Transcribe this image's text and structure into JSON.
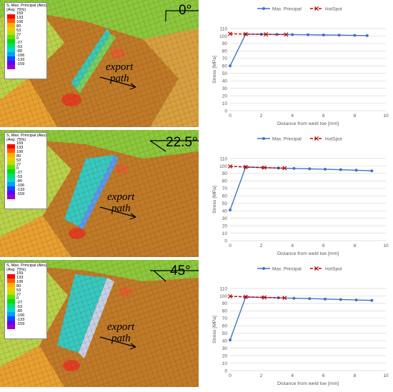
{
  "fea_legend": {
    "title_line1": "S, Max. Principal (Abs)",
    "title_line2": "(Avg: 75%)",
    "levels": [
      "159",
      "133",
      "106",
      "80",
      "53",
      "27",
      "0",
      "-27",
      "-53",
      "-80",
      "-106",
      "-133",
      "-159"
    ],
    "colors": [
      "#ff0000",
      "#ff5a00",
      "#ffae00",
      "#e8d000",
      "#b8e000",
      "#60e000",
      "#00e000",
      "#00e070",
      "#00d8c8",
      "#00a0ff",
      "#0050ff",
      "#6000ff",
      "#a000c0"
    ]
  },
  "panels": [
    {
      "angle": "0°",
      "export_line1": "export",
      "export_line2": "path"
    },
    {
      "angle": "22.5°",
      "export_line1": "export",
      "export_line2": "path"
    },
    {
      "angle": "45°",
      "export_line1": "export",
      "export_line2": "path"
    }
  ],
  "colors": {
    "max_principal": "#4472c4",
    "hotspot": "#c00000",
    "grid": "#d9d9d9",
    "axis_text": "#595959"
  },
  "chart_data": [
    {
      "type": "line",
      "xlabel": "Distance from weld toe [mm]",
      "ylabel": "Stress [MPa]",
      "xlim": [
        0,
        10
      ],
      "ylim": [
        0,
        110
      ],
      "xticks": [
        0,
        2,
        4,
        6,
        8,
        10
      ],
      "yticks": [
        0,
        10,
        20,
        30,
        40,
        50,
        60,
        70,
        80,
        90,
        100,
        110
      ],
      "grid": true,
      "legend": "top",
      "series": [
        {
          "name": "Max. Principal",
          "x": [
            0,
            1,
            2,
            3,
            4,
            5,
            6,
            7,
            8,
            8.8
          ],
          "y": [
            60,
            102.5,
            102.3,
            102.1,
            101.9,
            101.7,
            101.4,
            101.2,
            100.9,
            100.5
          ]
        },
        {
          "name": "HotSpot",
          "x": [
            0,
            1,
            2.3,
            3.6
          ],
          "y": [
            103,
            102.6,
            102.3,
            102.0
          ]
        }
      ]
    },
    {
      "type": "line",
      "xlabel": "Distance from weld toe [mm]",
      "ylabel": "Stress [MPa]",
      "xlim": [
        0,
        10
      ],
      "ylim": [
        0,
        110
      ],
      "xticks": [
        0,
        2,
        4,
        6,
        8,
        10
      ],
      "yticks": [
        0,
        10,
        20,
        30,
        40,
        50,
        60,
        70,
        80,
        90,
        100,
        110
      ],
      "grid": true,
      "legend": "top",
      "series": [
        {
          "name": "Max. Principal",
          "x": [
            0,
            1,
            2.1,
            3.1,
            4.1,
            5.1,
            6.1,
            7.1,
            8.1,
            9.1
          ],
          "y": [
            41,
            98.5,
            97.8,
            97.2,
            96.7,
            96.2,
            95.6,
            95.0,
            94.3,
            93.5
          ]
        },
        {
          "name": "HotSpot",
          "x": [
            0,
            1,
            2.2,
            3.5
          ],
          "y": [
            99.5,
            98.6,
            97.8,
            97.1
          ]
        }
      ]
    },
    {
      "type": "line",
      "xlabel": "Distance from weld toe [mm]",
      "ylabel": "Stress [MPa]",
      "xlim": [
        0,
        10
      ],
      "ylim": [
        0,
        110
      ],
      "xticks": [
        0,
        2,
        4,
        6,
        8,
        10
      ],
      "yticks": [
        0,
        10,
        20,
        30,
        40,
        50,
        60,
        70,
        80,
        90,
        100,
        110
      ],
      "grid": true,
      "legend": "top",
      "series": [
        {
          "name": "Max. Principal",
          "x": [
            0,
            1,
            2.1,
            3.1,
            4.1,
            5.1,
            6.1,
            7.1,
            8.1,
            9.1
          ],
          "y": [
            41,
            98.5,
            98.0,
            97.5,
            96.9,
            96.4,
            95.8,
            95.2,
            94.6,
            94.0
          ]
        },
        {
          "name": "HotSpot",
          "x": [
            0,
            1,
            2.2,
            3.5
          ],
          "y": [
            99.5,
            98.7,
            98.0,
            97.3
          ]
        }
      ]
    }
  ]
}
